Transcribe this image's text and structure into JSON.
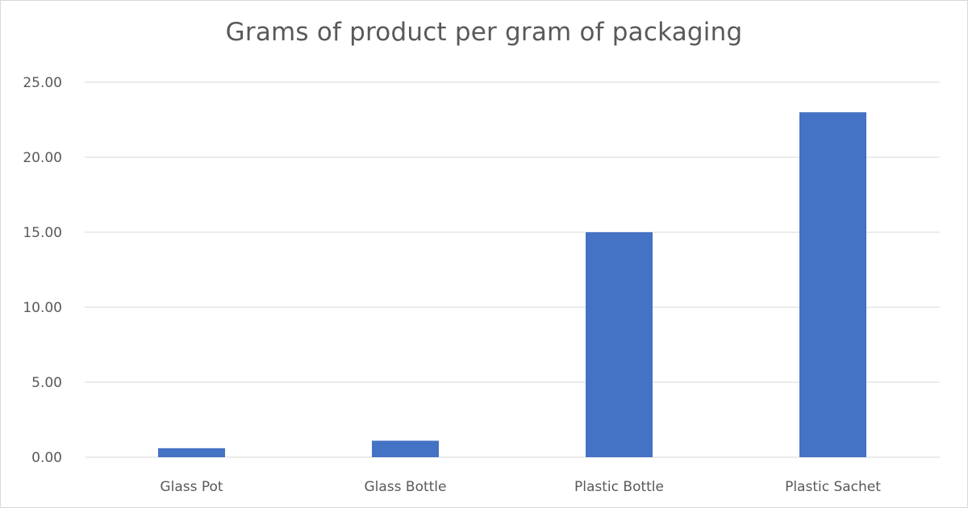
{
  "chart_data": {
    "type": "bar",
    "title": "Grams of product per gram of packaging",
    "xlabel": "",
    "ylabel": "",
    "categories": [
      "Glass Pot",
      "Glass Bottle",
      "Plastic Bottle",
      "Plastic Sachet"
    ],
    "values": [
      0.6,
      1.1,
      15.0,
      23.0
    ],
    "ylim": [
      0,
      25
    ],
    "yticks": [
      "0.00",
      "5.00",
      "10.00",
      "15.00",
      "20.00",
      "25.00"
    ],
    "grid": true,
    "legend": "none",
    "bar_color": "#4472C4",
    "grid_color": "#d9d9d9",
    "text_color": "#595959"
  }
}
